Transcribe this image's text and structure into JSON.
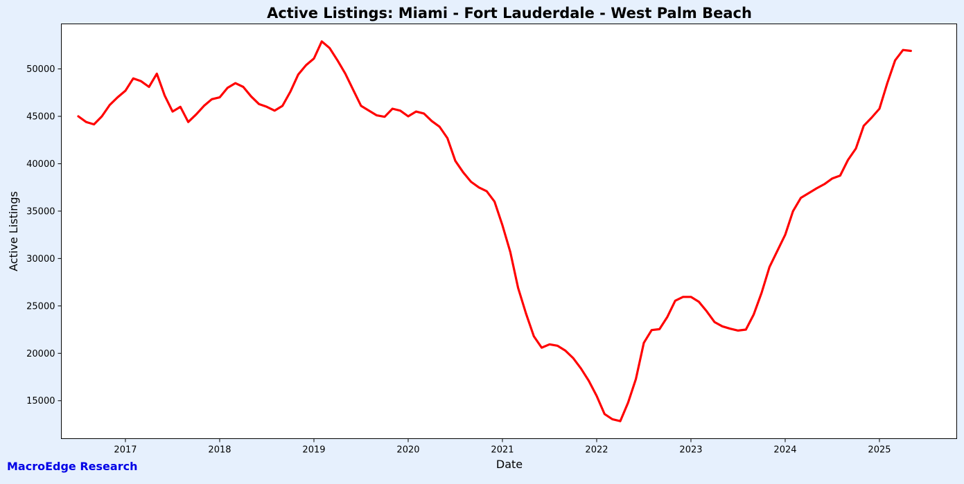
{
  "chart_data": {
    "type": "line",
    "title": "Active Listings: Miami - Fort Lauderdale - West Palm Beach",
    "xlabel": "Date",
    "ylabel": "Active Listings",
    "xlim": [
      2016.32,
      2025.82
    ],
    "ylim": [
      11000,
      54750
    ],
    "x_ticks": [
      2017,
      2018,
      2019,
      2020,
      2021,
      2022,
      2023,
      2024,
      2025
    ],
    "x_tick_labels": [
      "2017",
      "2018",
      "2019",
      "2020",
      "2021",
      "2022",
      "2023",
      "2024",
      "2025"
    ],
    "y_ticks": [
      15000,
      20000,
      25000,
      30000,
      35000,
      40000,
      45000,
      50000
    ],
    "y_tick_labels": [
      "15000",
      "20000",
      "25000",
      "30000",
      "35000",
      "40000",
      "45000",
      "50000"
    ],
    "grid": false,
    "series": [
      {
        "name": "",
        "color": "#ff0000",
        "x": [
          "2016-07",
          "2016-08",
          "2016-09",
          "2016-10",
          "2016-11",
          "2016-12",
          "2017-01",
          "2017-02",
          "2017-03",
          "2017-04",
          "2017-05",
          "2017-06",
          "2017-07",
          "2017-08",
          "2017-09",
          "2017-10",
          "2017-11",
          "2017-12",
          "2018-01",
          "2018-02",
          "2018-03",
          "2018-04",
          "2018-05",
          "2018-06",
          "2018-07",
          "2018-08",
          "2018-09",
          "2018-10",
          "2018-11",
          "2018-12",
          "2019-01",
          "2019-02",
          "2019-03",
          "2019-04",
          "2019-05",
          "2019-06",
          "2019-07",
          "2019-08",
          "2019-09",
          "2019-10",
          "2019-11",
          "2019-12",
          "2020-01",
          "2020-02",
          "2020-03",
          "2020-04",
          "2020-05",
          "2020-06",
          "2020-07",
          "2020-08",
          "2020-09",
          "2020-10",
          "2020-11",
          "2020-12",
          "2021-01",
          "2021-02",
          "2021-03",
          "2021-04",
          "2021-05",
          "2021-06",
          "2021-07",
          "2021-08",
          "2021-09",
          "2021-10",
          "2021-11",
          "2021-12",
          "2022-01",
          "2022-02",
          "2022-03",
          "2022-04",
          "2022-05",
          "2022-06",
          "2022-07",
          "2022-08",
          "2022-09",
          "2022-10",
          "2022-11",
          "2022-12",
          "2023-01",
          "2023-02",
          "2023-03",
          "2023-04",
          "2023-05",
          "2023-06",
          "2023-07",
          "2023-08",
          "2023-09",
          "2023-10",
          "2023-11",
          "2023-12",
          "2024-01",
          "2024-02",
          "2024-03",
          "2024-04",
          "2024-05",
          "2024-06",
          "2024-07",
          "2024-08",
          "2024-09",
          "2024-10",
          "2024-11",
          "2024-12",
          "2025-01",
          "2025-02",
          "2025-03",
          "2025-04",
          "2025-05"
        ],
        "values": [
          45000,
          44400,
          44150,
          45000,
          46200,
          47000,
          47700,
          49000,
          48700,
          48100,
          49500,
          47200,
          45500,
          46000,
          44400,
          45200,
          46100,
          46800,
          47000,
          48000,
          48500,
          48100,
          47100,
          46300,
          46000,
          45600,
          46100,
          47600,
          49400,
          50400,
          51100,
          52900,
          52200,
          50900,
          49500,
          47800,
          46100,
          45600,
          45100,
          44950,
          45800,
          45600,
          45000,
          45500,
          45300,
          44500,
          43900,
          42700,
          40300,
          39100,
          38100,
          37500,
          37100,
          36000,
          33500,
          30700,
          26900,
          24200,
          21800,
          20600,
          20950,
          20800,
          20300,
          19500,
          18400,
          17100,
          15500,
          13600,
          13050,
          12850,
          14800,
          17300,
          21100,
          22450,
          22550,
          23850,
          25550,
          25950,
          25950,
          25450,
          24450,
          23300,
          22850,
          22600,
          22400,
          22500,
          24100,
          26400,
          29100,
          30800,
          32500,
          35000,
          36400,
          36900,
          37400,
          37850,
          38450,
          38750,
          40400,
          41600,
          44000,
          44850,
          45800,
          48500,
          50900,
          52000,
          51900
        ]
      }
    ]
  },
  "watermark": "MacroEdge Research"
}
